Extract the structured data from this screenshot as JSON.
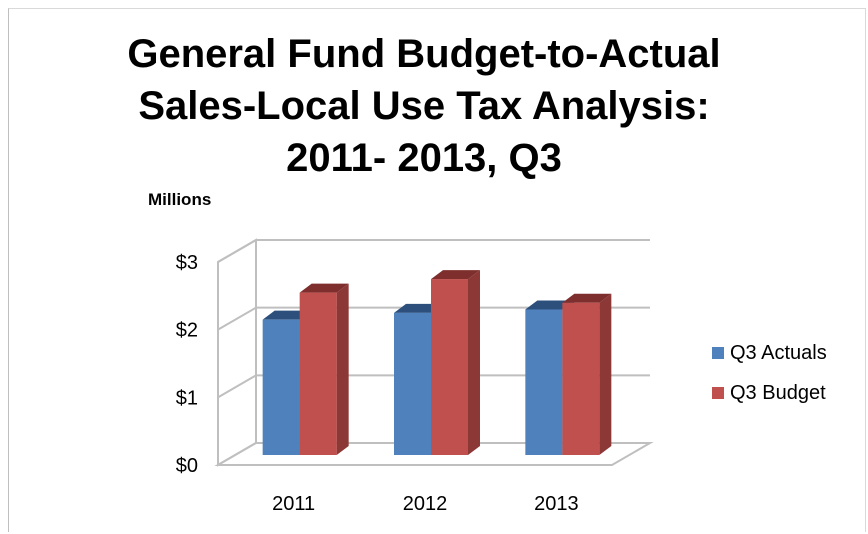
{
  "chart_data": {
    "type": "bar",
    "title_lines": [
      "General Fund Budget-to-Actual",
      "Sales-Local Use Tax Analysis:",
      "2011- 2013, Q3"
    ],
    "units_label": "Millions",
    "categories": [
      "2011",
      "2012",
      "2013"
    ],
    "series": [
      {
        "name": "Q3 Actuals",
        "values": [
          2.0,
          2.1,
          2.15
        ],
        "color": "#4f81bd",
        "side_color": "#385d8a",
        "top_color": "#2c4f7c"
      },
      {
        "name": "Q3 Budget",
        "values": [
          2.4,
          2.6,
          2.25
        ],
        "color": "#c0504d",
        "side_color": "#8c3836",
        "top_color": "#7e2f2d"
      }
    ],
    "y_ticks": [
      "$0",
      "$1",
      "$2",
      "$3"
    ],
    "ylim": [
      0,
      3
    ],
    "grid": true,
    "legend_position": "right",
    "style_3d": true
  }
}
